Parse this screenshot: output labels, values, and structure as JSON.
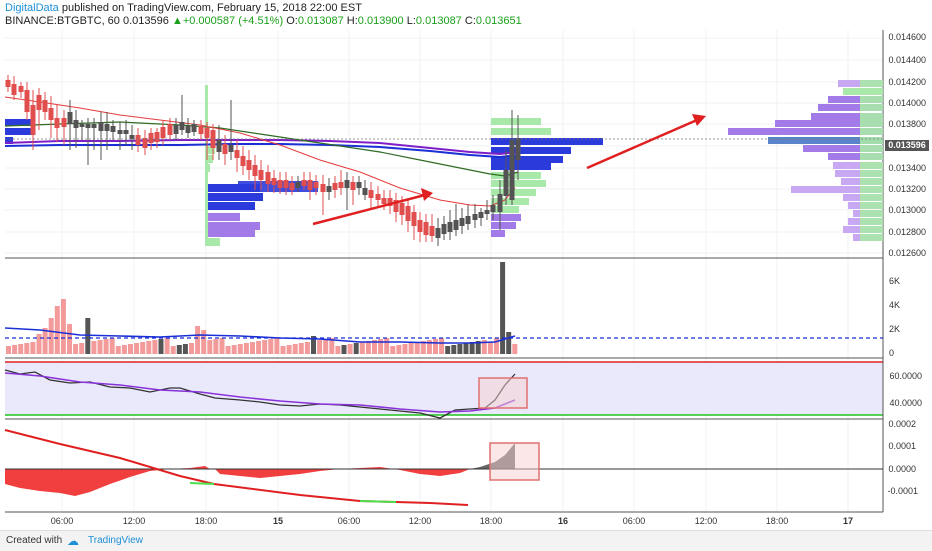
{
  "header": {
    "author": "DigitalData",
    "published_text": " published on TradingView.com, February 15, 2018 22:00 EST",
    "symbol": "BINANCE:BTGBTC, 60",
    "last": "0.013596",
    "change": "+0.000587 (+4.51%)",
    "o_label": "O:",
    "o_val": "0.013087",
    "h_label": "H:",
    "h_val": "0.013900",
    "l_label": "L:",
    "l_val": "0.013087",
    "c_label": "C:",
    "c_val": "0.013651"
  },
  "price_axis": {
    "labels": [
      "0.014600",
      "0.014400",
      "0.014200",
      "0.014000",
      "0.013800",
      "0.013400",
      "0.013200",
      "0.013000",
      "0.012800",
      "0.012600"
    ],
    "current": "0.013596"
  },
  "volume_axis": {
    "labels": [
      "6K",
      "4K",
      "2K",
      "0"
    ]
  },
  "rsi_axis": {
    "labels": [
      "60.0000",
      "40.0000"
    ]
  },
  "macd_axis": {
    "labels": [
      "0.0002",
      "0.0001",
      "0.0000",
      "-0.0001"
    ]
  },
  "time_axis": {
    "labels": [
      "06:00",
      "12:00",
      "18:00",
      "15",
      "06:00",
      "12:00",
      "18:00",
      "16",
      "06:00",
      "12:00",
      "18:00",
      "17"
    ]
  },
  "footer": {
    "created": "Created with",
    "cloud": "☁",
    "brand": "TradingView"
  },
  "colors": {
    "bull": "#535353",
    "bear": "#e04e4e",
    "ma_red": "#e53b3b",
    "ma_green": "#2f6b22",
    "ma_purple": "#7f1ec9",
    "ma_blue": "#1b2fd6",
    "vp_blue": "#2b3bdb",
    "vp_purple": "#a27be8",
    "vp_green": "#a8e8a8",
    "arrow": "#e02020",
    "rsi_band": "#e9e9fb"
  },
  "icons": {
    "footer_logo": "cloud-logo-icon"
  }
}
